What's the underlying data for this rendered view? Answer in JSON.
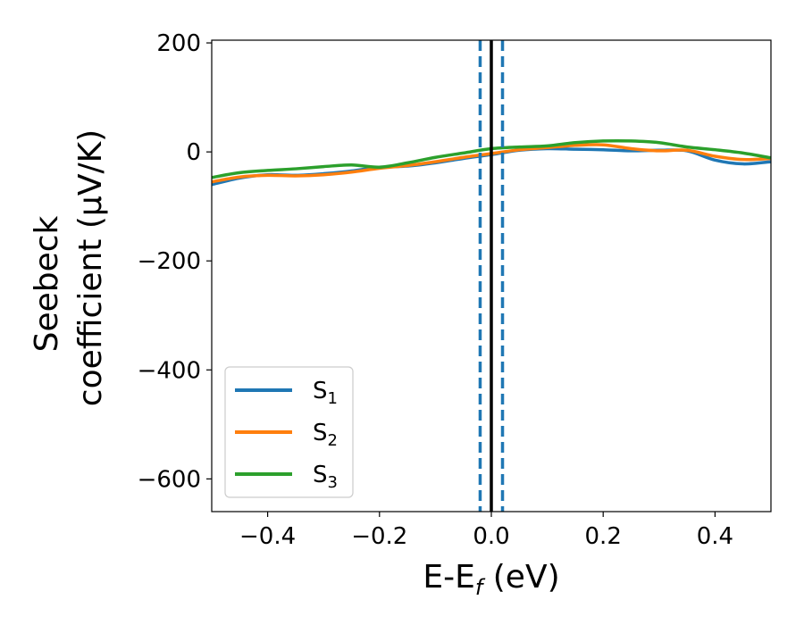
{
  "chart_data": {
    "type": "line",
    "xlabel": "E-E",
    "xlabel_sub": "f",
    "xlabel_unit": " (eV)",
    "ylabel_line1": "Seebeck",
    "ylabel_line2": "coefficient  (μV/K)",
    "xlim": [
      -0.5,
      0.5
    ],
    "ylim": [
      -660,
      205
    ],
    "xticks": [
      -0.4,
      -0.2,
      0.0,
      0.2,
      0.4
    ],
    "xtick_labels": [
      "−0.4",
      "−0.2",
      "0.0",
      "0.2",
      "0.4"
    ],
    "yticks": [
      200,
      0,
      -200,
      -400,
      -600
    ],
    "ytick_labels": [
      "200",
      "0",
      "−200",
      "−400",
      "−600"
    ],
    "grid": false,
    "legend_position": "lower-left",
    "vlines": [
      {
        "x": 0.0,
        "color": "#000000",
        "style": "solid"
      },
      {
        "x": -0.02,
        "color": "#1f77b4",
        "style": "dashed"
      },
      {
        "x": 0.02,
        "color": "#1f77b4",
        "style": "dashed"
      }
    ],
    "series": [
      {
        "name": "S",
        "sub": "1",
        "color": "#1f77b4",
        "x": [
          -0.5,
          -0.45,
          -0.4,
          -0.35,
          -0.3,
          -0.25,
          -0.2,
          -0.15,
          -0.1,
          -0.05,
          0.0,
          0.05,
          0.1,
          0.15,
          0.2,
          0.25,
          0.3,
          0.35,
          0.4,
          0.45,
          0.5
        ],
        "y": [
          -60,
          -48,
          -42,
          -43,
          -40,
          -35,
          -28,
          -26,
          -20,
          -12,
          -5,
          3,
          6,
          5,
          4,
          2,
          3,
          2,
          -15,
          -22,
          -18
        ]
      },
      {
        "name": "S",
        "sub": "2",
        "color": "#ff7f0e",
        "x": [
          -0.5,
          -0.45,
          -0.4,
          -0.35,
          -0.3,
          -0.25,
          -0.2,
          -0.15,
          -0.1,
          -0.05,
          0.0,
          0.05,
          0.1,
          0.15,
          0.2,
          0.25,
          0.3,
          0.35,
          0.4,
          0.45,
          0.5
        ],
        "y": [
          -55,
          -46,
          -43,
          -44,
          -42,
          -37,
          -30,
          -25,
          -18,
          -10,
          -3,
          4,
          8,
          12,
          13,
          6,
          2,
          3,
          -8,
          -14,
          -12
        ]
      },
      {
        "name": "S",
        "sub": "3",
        "color": "#2ca02c",
        "x": [
          -0.5,
          -0.45,
          -0.4,
          -0.35,
          -0.3,
          -0.25,
          -0.2,
          -0.15,
          -0.1,
          -0.05,
          0.0,
          0.05,
          0.1,
          0.15,
          0.2,
          0.25,
          0.3,
          0.35,
          0.4,
          0.45,
          0.5
        ],
        "y": [
          -47,
          -38,
          -34,
          -31,
          -27,
          -24,
          -28,
          -20,
          -10,
          -2,
          6,
          9,
          11,
          17,
          20,
          20,
          17,
          9,
          4,
          -2,
          -11
        ]
      }
    ]
  }
}
